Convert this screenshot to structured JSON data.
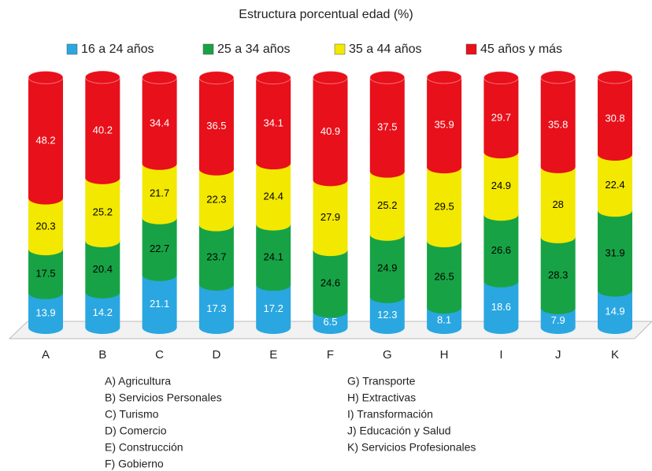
{
  "chart_data": {
    "type": "bar",
    "stacked": true,
    "title": "Estructura porcentual edad (%)",
    "categories": [
      "A",
      "B",
      "C",
      "D",
      "E",
      "F",
      "G",
      "H",
      "I",
      "J",
      "K"
    ],
    "series": [
      {
        "name": "16 a 24 años",
        "color": "#2aa7e0",
        "label_color": "#ffffff",
        "values": [
          13.9,
          14.2,
          21.1,
          17.3,
          17.2,
          6.5,
          12.3,
          8.1,
          18.6,
          7.9,
          14.9
        ]
      },
      {
        "name": "25 a 34 años",
        "color": "#17a345",
        "label_color": "#000000",
        "values": [
          17.5,
          20.4,
          22.7,
          23.7,
          24.1,
          24.6,
          24.9,
          26.5,
          26.6,
          28.3,
          31.9
        ]
      },
      {
        "name": "35 a 44 años",
        "color": "#f3e800",
        "label_color": "#000000",
        "values": [
          20.3,
          25.2,
          21.7,
          22.3,
          24.4,
          27.9,
          25.2,
          29.5,
          24.9,
          28,
          22.4
        ]
      },
      {
        "name": "45 años y más",
        "color": "#e8101a",
        "label_color": "#ffffff",
        "values": [
          48.2,
          40.2,
          34.4,
          36.5,
          34.1,
          40.9,
          37.5,
          35.9,
          29.7,
          35.8,
          30.8
        ]
      }
    ],
    "notes": [
      "A) Agricultura",
      "B) Servicios Personales",
      "C) Turismo",
      "D) Comercio",
      "E) Construcción",
      "F) Gobierno",
      "G) Transporte",
      "H) Extractivas",
      "I) Transformación",
      "J) Educación y Salud",
      "K) Servicios Profesionales"
    ]
  }
}
